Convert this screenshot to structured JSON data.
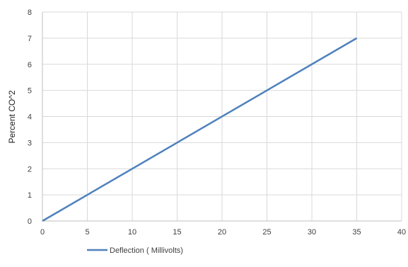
{
  "chart_data": {
    "type": "line",
    "title": "",
    "xlabel": "",
    "ylabel": "Percent CO^2",
    "xlim": [
      0,
      40
    ],
    "ylim": [
      0,
      8
    ],
    "x_ticks": [
      "0",
      "5",
      "10",
      "15",
      "20",
      "25",
      "30",
      "35",
      "40"
    ],
    "y_ticks": [
      "0",
      "1",
      "2",
      "3",
      "4",
      "5",
      "6",
      "7",
      "8"
    ],
    "grid": true,
    "legend_position": "bottom",
    "series": [
      {
        "name": "Deflection ( Millivolts)",
        "color": "#4f81bd",
        "x": [
          0,
          35
        ],
        "y": [
          0,
          7
        ]
      }
    ]
  }
}
